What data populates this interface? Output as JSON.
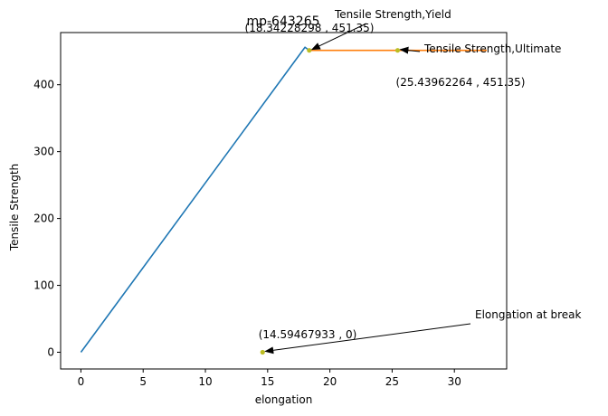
{
  "chart_data": {
    "type": "line",
    "title": "mp-643265",
    "xlabel": "elongation",
    "ylabel": "Tensile Strength",
    "xlim": [
      -1.63,
      34.2
    ],
    "ylim": [
      -25,
      478
    ],
    "xticks": [
      "0",
      "5",
      "10",
      "15",
      "20",
      "25",
      "30"
    ],
    "xtick_values": [
      0,
      5,
      10,
      15,
      20,
      25,
      30
    ],
    "yticks": [
      "0",
      "100",
      "200",
      "300",
      "400"
    ],
    "ytick_values": [
      0,
      100,
      200,
      300,
      400
    ],
    "grid": false,
    "series": [
      {
        "color": "#1f77b4",
        "points": [
          [
            0,
            0
          ],
          [
            18.0,
            456
          ],
          [
            18.34228298,
            451.35
          ]
        ]
      },
      {
        "color": "#ff7f0e",
        "points": [
          [
            18.34228298,
            451.35
          ],
          [
            32.6,
            451.35
          ]
        ]
      }
    ],
    "marker_color": "#bcbd22",
    "annotations": [
      {
        "label": "Tensile Strength,Yield",
        "coord_text": "(18.34228298 , 451.35)",
        "point": [
          18.34228298,
          451.35
        ]
      },
      {
        "label": "Tensile Strength,Ultimate",
        "coord_text": "(25.43962264 , 451.35)",
        "point": [
          25.43962264,
          451.35
        ]
      },
      {
        "label": "Elongation at break",
        "coord_text": "(14.59467933 , 0)",
        "point": [
          14.59467933,
          0
        ]
      }
    ]
  }
}
